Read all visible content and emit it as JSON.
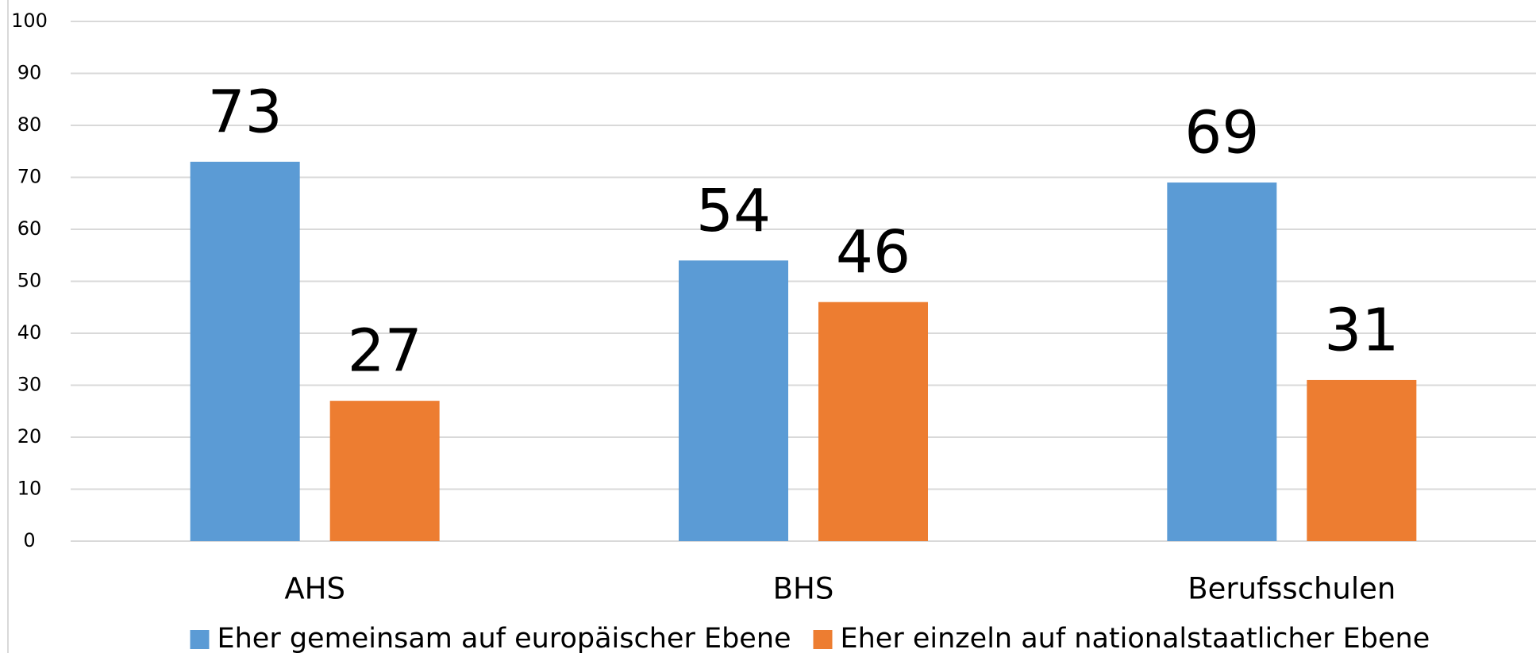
{
  "chart_data": {
    "type": "bar",
    "categories": [
      "AHS",
      "BHS",
      "Berufsschulen"
    ],
    "series": [
      {
        "name": "Eher gemeinsam auf europäischer Ebene",
        "color": "#5b9bd5",
        "values": [
          73,
          54,
          69
        ]
      },
      {
        "name": "Eher einzeln auf nationalstaatlicher Ebene",
        "color": "#ed7d31",
        "values": [
          27,
          46,
          31
        ]
      }
    ],
    "ylim": [
      0,
      100
    ],
    "yticks": [
      0,
      10,
      20,
      30,
      40,
      50,
      60,
      70,
      80,
      90,
      100
    ],
    "grid": true,
    "legend": "bottom"
  }
}
